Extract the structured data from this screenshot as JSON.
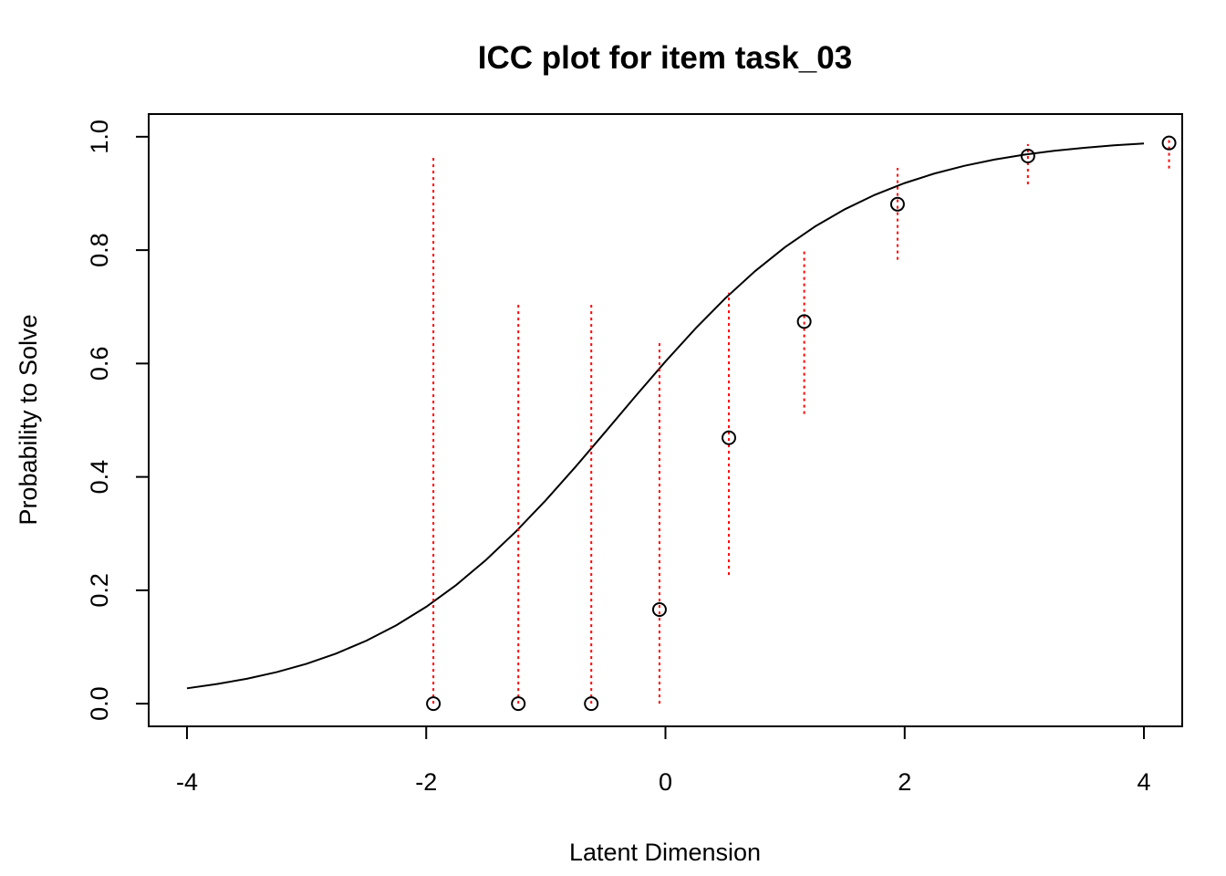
{
  "chart_data": {
    "type": "icc",
    "title": "ICC plot for item  task_03",
    "x_label": "Latent Dimension",
    "y_label": "Probability to Solve",
    "xlim": [
      -4.32,
      4.32
    ],
    "ylim": [
      -0.04,
      1.04
    ],
    "xticks": [
      -4,
      -2,
      0,
      2,
      4
    ],
    "yticks": [
      {
        "value": 0,
        "label": "0.0"
      },
      {
        "value": 0.2,
        "label": "0.2"
      },
      {
        "value": 0.4,
        "label": "0.4"
      },
      {
        "value": 0.6,
        "label": "0.6"
      },
      {
        "value": 0.8,
        "label": "0.8"
      },
      {
        "value": 1,
        "label": "1.0"
      }
    ],
    "curve": {
      "color": "#000000",
      "x": [
        -4,
        -3.75,
        -3.5,
        -3.25,
        -3,
        -2.75,
        -2.5,
        -2.25,
        -2,
        -1.75,
        -1.5,
        -1.25,
        -1,
        -0.75,
        -0.5,
        -0.25,
        0,
        0.25,
        0.5,
        0.75,
        1,
        1.25,
        1.5,
        1.75,
        2,
        2.25,
        2.5,
        2.75,
        3,
        3.25,
        3.5,
        3.75,
        4
      ],
      "y": [
        0.0271,
        0.0346,
        0.0439,
        0.0557,
        0.0704,
        0.0887,
        0.1111,
        0.1383,
        0.1708,
        0.2092,
        0.2535,
        0.3037,
        0.3589,
        0.4182,
        0.48,
        0.5424,
        0.6035,
        0.6615,
        0.715,
        0.7631,
        0.8053,
        0.8416,
        0.8721,
        0.8975,
        0.9183,
        0.9352,
        0.9488,
        0.9597,
        0.9683,
        0.9752,
        0.9805,
        0.9848,
        0.9881
      ]
    },
    "points": {
      "color": "#000000",
      "ci_color": "#ff0000",
      "x": [
        -1.94,
        -1.23,
        -0.62,
        -0.05,
        0.53,
        1.16,
        1.94,
        3.03,
        4.21
      ],
      "y": [
        0,
        0,
        0,
        0.166,
        0.469,
        0.674,
        0.881,
        0.966,
        0.989
      ],
      "lower": [
        0,
        0,
        0,
        0,
        0.227,
        0.511,
        0.783,
        0.916,
        0.944
      ],
      "upper": [
        0.968,
        0.707,
        0.707,
        0.64,
        0.725,
        0.802,
        0.945,
        0.987,
        1.0
      ]
    }
  }
}
